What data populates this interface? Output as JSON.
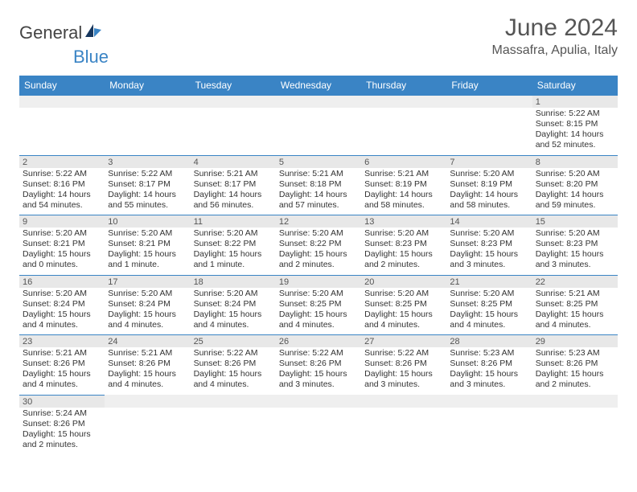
{
  "logo": {
    "text1": "General",
    "text2": "Blue"
  },
  "title": "June 2024",
  "location": "Massafra, Apulia, Italy",
  "colors": {
    "header_bg": "#3a84c5",
    "header_text": "#ffffff",
    "shade_bg": "#e8e8e8",
    "rule": "#3a84c5",
    "body_text": "#333333",
    "title_text": "#555555"
  },
  "day_headers": [
    "Sunday",
    "Monday",
    "Tuesday",
    "Wednesday",
    "Thursday",
    "Friday",
    "Saturday"
  ],
  "weeks": [
    [
      null,
      null,
      null,
      null,
      null,
      null,
      {
        "n": "1",
        "sr": "5:22 AM",
        "ss": "8:15 PM",
        "dl": "14 hours and 52 minutes."
      }
    ],
    [
      {
        "n": "2",
        "sr": "5:22 AM",
        "ss": "8:16 PM",
        "dl": "14 hours and 54 minutes."
      },
      {
        "n": "3",
        "sr": "5:22 AM",
        "ss": "8:17 PM",
        "dl": "14 hours and 55 minutes."
      },
      {
        "n": "4",
        "sr": "5:21 AM",
        "ss": "8:17 PM",
        "dl": "14 hours and 56 minutes."
      },
      {
        "n": "5",
        "sr": "5:21 AM",
        "ss": "8:18 PM",
        "dl": "14 hours and 57 minutes."
      },
      {
        "n": "6",
        "sr": "5:21 AM",
        "ss": "8:19 PM",
        "dl": "14 hours and 58 minutes."
      },
      {
        "n": "7",
        "sr": "5:20 AM",
        "ss": "8:19 PM",
        "dl": "14 hours and 58 minutes."
      },
      {
        "n": "8",
        "sr": "5:20 AM",
        "ss": "8:20 PM",
        "dl": "14 hours and 59 minutes."
      }
    ],
    [
      {
        "n": "9",
        "sr": "5:20 AM",
        "ss": "8:21 PM",
        "dl": "15 hours and 0 minutes."
      },
      {
        "n": "10",
        "sr": "5:20 AM",
        "ss": "8:21 PM",
        "dl": "15 hours and 1 minute."
      },
      {
        "n": "11",
        "sr": "5:20 AM",
        "ss": "8:22 PM",
        "dl": "15 hours and 1 minute."
      },
      {
        "n": "12",
        "sr": "5:20 AM",
        "ss": "8:22 PM",
        "dl": "15 hours and 2 minutes."
      },
      {
        "n": "13",
        "sr": "5:20 AM",
        "ss": "8:23 PM",
        "dl": "15 hours and 2 minutes."
      },
      {
        "n": "14",
        "sr": "5:20 AM",
        "ss": "8:23 PM",
        "dl": "15 hours and 3 minutes."
      },
      {
        "n": "15",
        "sr": "5:20 AM",
        "ss": "8:23 PM",
        "dl": "15 hours and 3 minutes."
      }
    ],
    [
      {
        "n": "16",
        "sr": "5:20 AM",
        "ss": "8:24 PM",
        "dl": "15 hours and 4 minutes."
      },
      {
        "n": "17",
        "sr": "5:20 AM",
        "ss": "8:24 PM",
        "dl": "15 hours and 4 minutes."
      },
      {
        "n": "18",
        "sr": "5:20 AM",
        "ss": "8:24 PM",
        "dl": "15 hours and 4 minutes."
      },
      {
        "n": "19",
        "sr": "5:20 AM",
        "ss": "8:25 PM",
        "dl": "15 hours and 4 minutes."
      },
      {
        "n": "20",
        "sr": "5:20 AM",
        "ss": "8:25 PM",
        "dl": "15 hours and 4 minutes."
      },
      {
        "n": "21",
        "sr": "5:20 AM",
        "ss": "8:25 PM",
        "dl": "15 hours and 4 minutes."
      },
      {
        "n": "22",
        "sr": "5:21 AM",
        "ss": "8:25 PM",
        "dl": "15 hours and 4 minutes."
      }
    ],
    [
      {
        "n": "23",
        "sr": "5:21 AM",
        "ss": "8:26 PM",
        "dl": "15 hours and 4 minutes."
      },
      {
        "n": "24",
        "sr": "5:21 AM",
        "ss": "8:26 PM",
        "dl": "15 hours and 4 minutes."
      },
      {
        "n": "25",
        "sr": "5:22 AM",
        "ss": "8:26 PM",
        "dl": "15 hours and 4 minutes."
      },
      {
        "n": "26",
        "sr": "5:22 AM",
        "ss": "8:26 PM",
        "dl": "15 hours and 3 minutes."
      },
      {
        "n": "27",
        "sr": "5:22 AM",
        "ss": "8:26 PM",
        "dl": "15 hours and 3 minutes."
      },
      {
        "n": "28",
        "sr": "5:23 AM",
        "ss": "8:26 PM",
        "dl": "15 hours and 3 minutes."
      },
      {
        "n": "29",
        "sr": "5:23 AM",
        "ss": "8:26 PM",
        "dl": "15 hours and 2 minutes."
      }
    ],
    [
      {
        "n": "30",
        "sr": "5:24 AM",
        "ss": "8:26 PM",
        "dl": "15 hours and 2 minutes."
      },
      null,
      null,
      null,
      null,
      null,
      null
    ]
  ],
  "labels": {
    "sunrise": "Sunrise:",
    "sunset": "Sunset:",
    "daylight": "Daylight:"
  }
}
